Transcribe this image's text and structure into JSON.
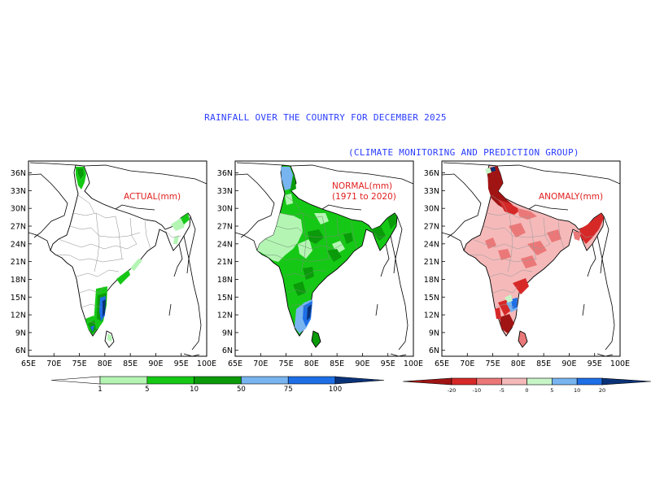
{
  "title": "RAINFALL OVER THE COUNTRY FOR DECEMBER 2025",
  "subtitle": "(CLIMATE MONITORING AND PREDICTION GROUP)",
  "panels": [
    {
      "id": "actual",
      "label": "ACTUAL(mm)",
      "label2": ""
    },
    {
      "id": "normal",
      "label": "NORMAL(mm)",
      "label2": "(1971 to 2020)"
    },
    {
      "id": "anomaly",
      "label": "ANOMALY(mm)",
      "label2": ""
    }
  ],
  "axes": {
    "lon_ticks": [
      "65E",
      "70E",
      "75E",
      "80E",
      "85E",
      "90E",
      "95E",
      "100E"
    ],
    "lat_ticks": [
      "36N",
      "33N",
      "30N",
      "27N",
      "24N",
      "21N",
      "18N",
      "15N",
      "12N",
      "9N",
      "6N"
    ],
    "lon_range": [
      65,
      100
    ],
    "lat_range": [
      5,
      38
    ]
  },
  "legends": {
    "rainfall": {
      "labels": [
        "1",
        "5",
        "10",
        "50",
        "75",
        "100"
      ],
      "colors": [
        "#ffffff",
        "#b4f5b4",
        "#16c816",
        "#0a9a0a",
        "#78b4f0",
        "#1e6ee6",
        "#0a3278"
      ]
    },
    "anomaly": {
      "labels": [
        "-20",
        "-10",
        "-5",
        "0",
        "5",
        "10",
        "20"
      ],
      "colors": [
        "#a01414",
        "#d72828",
        "#eb7878",
        "#f5b9b9",
        "#c8f5c8",
        "#78b4f0",
        "#1e6ee6",
        "#0a3278"
      ]
    }
  }
}
